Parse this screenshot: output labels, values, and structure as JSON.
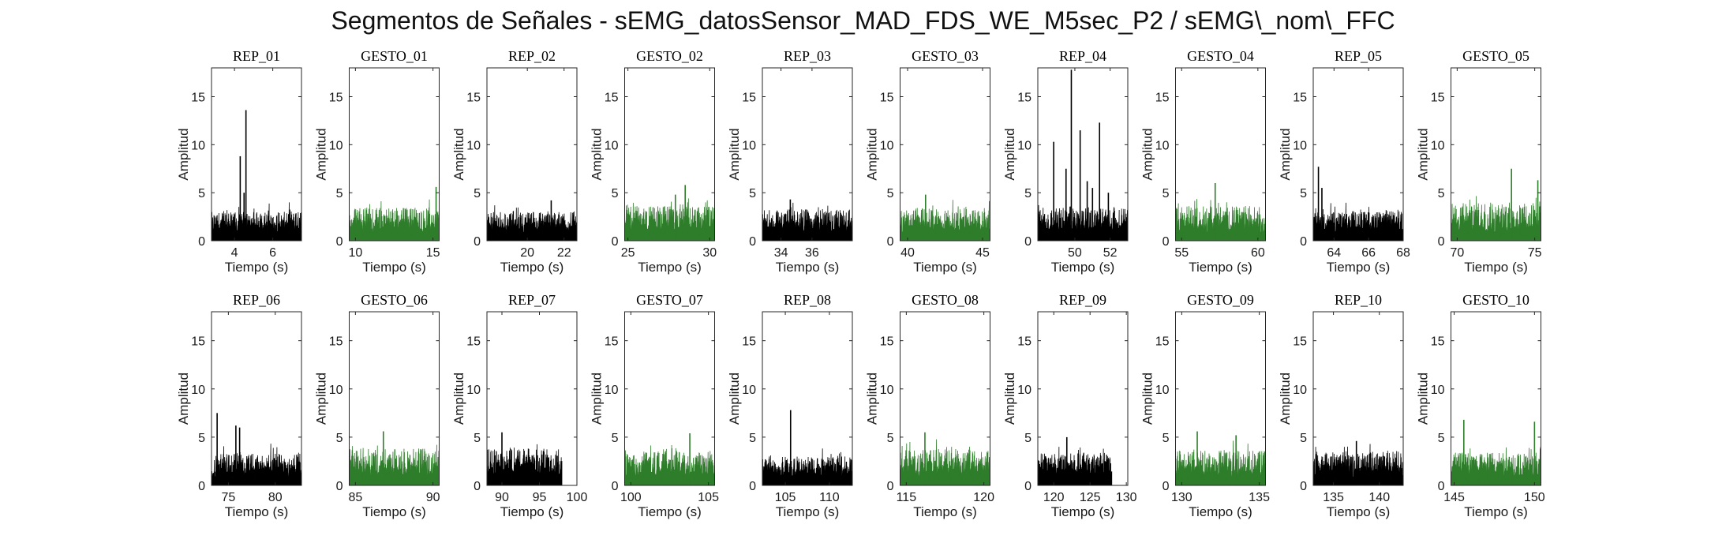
{
  "figure": {
    "title": "Segmentos de Señales - sEMG_datosSensor_MAD_FDS_WE_M5sec_P2 / sEMG\\_nom\\_FFC"
  },
  "colors": {
    "rep": "#000000",
    "gesto": "#2e7d2a"
  },
  "chart_data": [
    {
      "type": "area",
      "title": "REP_01",
      "kind": "rep",
      "xlim": [
        2.8,
        7.5
      ],
      "xticks": [
        4,
        6
      ],
      "ylim": [
        0,
        18
      ],
      "yticks": [
        0,
        5,
        10,
        15
      ],
      "xlabel": "Tiempo (s)",
      "ylabel": "Amplitud",
      "x_start": 2.8,
      "x_end": 7.5,
      "base": 3.0,
      "spikes": [
        [
          4.3,
          8.8
        ],
        [
          4.6,
          13.6
        ],
        [
          4.5,
          5.0
        ]
      ]
    },
    {
      "type": "area",
      "title": "GESTO_01",
      "kind": "gesto",
      "xlim": [
        9.6,
        15.4
      ],
      "xticks": [
        10,
        15
      ],
      "ylim": [
        0,
        18
      ],
      "yticks": [
        0,
        5,
        10,
        15
      ],
      "xlabel": "Tiempo (s)",
      "ylabel": "Amplitud",
      "x_start": 9.6,
      "x_end": 15.4,
      "base": 3.5,
      "spikes": [
        [
          15.2,
          5.6
        ]
      ]
    },
    {
      "type": "area",
      "title": "REP_02",
      "kind": "rep",
      "xlim": [
        17.8,
        22.7
      ],
      "xticks": [
        20,
        22
      ],
      "ylim": [
        0,
        18
      ],
      "yticks": [
        0,
        5,
        10,
        15
      ],
      "xlabel": "Tiempo (s)",
      "ylabel": "Amplitud",
      "x_start": 17.8,
      "x_end": 22.7,
      "base": 3.0,
      "spikes": [
        [
          21.3,
          4.2
        ]
      ]
    },
    {
      "type": "area",
      "title": "GESTO_02",
      "kind": "gesto",
      "xlim": [
        24.8,
        30.3
      ],
      "xticks": [
        25,
        30
      ],
      "ylim": [
        0,
        18
      ],
      "yticks": [
        0,
        5,
        10,
        15
      ],
      "xlabel": "Tiempo (s)",
      "ylabel": "Amplitud",
      "x_start": 24.8,
      "x_end": 30.3,
      "base": 3.6,
      "spikes": [
        [
          28.5,
          5.8
        ],
        [
          27.9,
          4.8
        ]
      ]
    },
    {
      "type": "area",
      "title": "REP_03",
      "kind": "rep",
      "xlim": [
        32.8,
        38.6
      ],
      "xticks": [
        34,
        36
      ],
      "ylim": [
        0,
        18
      ],
      "yticks": [
        0,
        5,
        10,
        15
      ],
      "xlabel": "Tiempo (s)",
      "ylabel": "Amplitud",
      "x_start": 32.8,
      "x_end": 38.6,
      "base": 3.3,
      "spikes": [
        [
          34.6,
          4.3
        ]
      ]
    },
    {
      "type": "area",
      "title": "GESTO_03",
      "kind": "gesto",
      "xlim": [
        39.5,
        45.5
      ],
      "xticks": [
        40,
        45
      ],
      "ylim": [
        0,
        18
      ],
      "yticks": [
        0,
        5,
        10,
        15
      ],
      "xlabel": "Tiempo (s)",
      "ylabel": "Amplitud",
      "x_start": 39.5,
      "x_end": 45.5,
      "base": 3.4,
      "spikes": [
        [
          41.2,
          4.8
        ]
      ]
    },
    {
      "type": "area",
      "title": "REP_04",
      "kind": "rep",
      "xlim": [
        47.9,
        53.0
      ],
      "xticks": [
        50,
        52
      ],
      "ylim": [
        0,
        18
      ],
      "yticks": [
        0,
        5,
        10,
        15
      ],
      "xlabel": "Tiempo (s)",
      "ylabel": "Amplitud",
      "x_start": 47.9,
      "x_end": 53.0,
      "base": 3.5,
      "spikes": [
        [
          48.8,
          10.3
        ],
        [
          49.5,
          7.5
        ],
        [
          49.8,
          17.8
        ],
        [
          50.3,
          11.5
        ],
        [
          50.7,
          6.2
        ],
        [
          51.0,
          5.5
        ],
        [
          51.4,
          12.3
        ],
        [
          51.9,
          5.0
        ]
      ]
    },
    {
      "type": "area",
      "title": "GESTO_04",
      "kind": "gesto",
      "xlim": [
        54.6,
        60.5
      ],
      "xticks": [
        55,
        60
      ],
      "ylim": [
        0,
        18
      ],
      "yticks": [
        0,
        5,
        10,
        15
      ],
      "xlabel": "Tiempo (s)",
      "ylabel": "Amplitud",
      "x_start": 54.6,
      "x_end": 60.5,
      "base": 3.6,
      "spikes": [
        [
          57.2,
          6.0
        ]
      ]
    },
    {
      "type": "area",
      "title": "REP_05",
      "kind": "rep",
      "xlim": [
        62.8,
        68.0
      ],
      "xticks": [
        64,
        66,
        68
      ],
      "ylim": [
        0,
        18
      ],
      "yticks": [
        0,
        5,
        10,
        15
      ],
      "xlabel": "Tiempo (s)",
      "ylabel": "Amplitud",
      "x_start": 62.8,
      "x_end": 68.0,
      "base": 3.1,
      "spikes": [
        [
          63.1,
          7.7
        ],
        [
          63.3,
          5.5
        ]
      ]
    },
    {
      "type": "area",
      "title": "GESTO_05",
      "kind": "gesto",
      "xlim": [
        69.6,
        75.4
      ],
      "xticks": [
        70,
        75
      ],
      "ylim": [
        0,
        18
      ],
      "yticks": [
        0,
        5,
        10,
        15
      ],
      "xlabel": "Tiempo (s)",
      "ylabel": "Amplitud",
      "x_start": 69.6,
      "x_end": 75.4,
      "base": 4.0,
      "spikes": [
        [
          73.5,
          7.5
        ],
        [
          75.2,
          6.3
        ]
      ]
    },
    {
      "type": "area",
      "title": "REP_06",
      "kind": "rep",
      "xlim": [
        73.2,
        82.8
      ],
      "xticks": [
        75,
        80
      ],
      "ylim": [
        0,
        18
      ],
      "yticks": [
        0,
        5,
        10,
        15
      ],
      "xlabel": "Tiempo (s)",
      "ylabel": "Amplitud",
      "x_start": 73.2,
      "x_end": 82.8,
      "base": 3.3,
      "spikes": [
        [
          73.8,
          7.5
        ],
        [
          75.8,
          6.2
        ],
        [
          76.2,
          6.0
        ]
      ]
    },
    {
      "type": "area",
      "title": "GESTO_06",
      "kind": "gesto",
      "xlim": [
        84.6,
        90.4
      ],
      "xticks": [
        85,
        90
      ],
      "ylim": [
        0,
        18
      ],
      "yticks": [
        0,
        5,
        10,
        15
      ],
      "xlabel": "Tiempo (s)",
      "ylabel": "Amplitud",
      "x_start": 84.6,
      "x_end": 90.4,
      "base": 3.8,
      "spikes": [
        [
          86.8,
          5.6
        ]
      ]
    },
    {
      "type": "area",
      "title": "REP_07",
      "kind": "rep",
      "xlim": [
        88.0,
        100.0
      ],
      "xticks": [
        90,
        95,
        100
      ],
      "ylim": [
        0,
        18
      ],
      "yticks": [
        0,
        5,
        10,
        15
      ],
      "xlabel": "Tiempo (s)",
      "ylabel": "Amplitud",
      "x_start": 88.0,
      "x_end": 98.0,
      "base": 3.8,
      "spikes": [
        [
          90.0,
          5.5
        ]
      ]
    },
    {
      "type": "area",
      "title": "GESTO_07",
      "kind": "gesto",
      "xlim": [
        99.6,
        105.4
      ],
      "xticks": [
        100,
        105
      ],
      "ylim": [
        0,
        18
      ],
      "yticks": [
        0,
        5,
        10,
        15
      ],
      "xlabel": "Tiempo (s)",
      "ylabel": "Amplitud",
      "x_start": 99.6,
      "x_end": 105.4,
      "base": 3.6,
      "spikes": [
        [
          103.8,
          5.4
        ]
      ]
    },
    {
      "type": "area",
      "title": "REP_08",
      "kind": "rep",
      "xlim": [
        102.4,
        112.6
      ],
      "xticks": [
        105,
        110
      ],
      "ylim": [
        0,
        18
      ],
      "yticks": [
        0,
        5,
        10,
        15
      ],
      "xlabel": "Tiempo (s)",
      "ylabel": "Amplitud",
      "x_start": 102.4,
      "x_end": 112.6,
      "base": 3.0,
      "spikes": [
        [
          105.6,
          7.8
        ]
      ]
    },
    {
      "type": "area",
      "title": "GESTO_08",
      "kind": "gesto",
      "xlim": [
        114.6,
        120.4
      ],
      "xticks": [
        115,
        120
      ],
      "ylim": [
        0,
        18
      ],
      "yticks": [
        0,
        5,
        10,
        15
      ],
      "xlabel": "Tiempo (s)",
      "ylabel": "Amplitud",
      "x_start": 114.6,
      "x_end": 120.4,
      "base": 3.8,
      "spikes": [
        [
          116.2,
          5.5
        ]
      ]
    },
    {
      "type": "area",
      "title": "REP_09",
      "kind": "rep",
      "xlim": [
        117.8,
        130.2
      ],
      "xticks": [
        120,
        125,
        130
      ],
      "ylim": [
        0,
        18
      ],
      "yticks": [
        0,
        5,
        10,
        15
      ],
      "xlabel": "Tiempo (s)",
      "ylabel": "Amplitud",
      "x_start": 117.8,
      "x_end": 128.0,
      "base": 3.4,
      "spikes": [
        [
          121.8,
          5.0
        ]
      ]
    },
    {
      "type": "area",
      "title": "GESTO_09",
      "kind": "gesto",
      "xlim": [
        129.6,
        135.4
      ],
      "xticks": [
        130,
        135
      ],
      "ylim": [
        0,
        18
      ],
      "yticks": [
        0,
        5,
        10,
        15
      ],
      "xlabel": "Tiempo (s)",
      "ylabel": "Amplitud",
      "x_start": 129.6,
      "x_end": 135.4,
      "base": 3.6,
      "spikes": [
        [
          131.0,
          5.6
        ],
        [
          133.5,
          5.2
        ]
      ]
    },
    {
      "type": "area",
      "title": "REP_10",
      "kind": "rep",
      "xlim": [
        132.8,
        142.6
      ],
      "xticks": [
        135,
        140
      ],
      "ylim": [
        0,
        18
      ],
      "yticks": [
        0,
        5,
        10,
        15
      ],
      "xlabel": "Tiempo (s)",
      "ylabel": "Amplitud",
      "x_start": 132.8,
      "x_end": 142.6,
      "base": 3.5,
      "spikes": [
        [
          137.5,
          4.6
        ]
      ]
    },
    {
      "type": "area",
      "title": "GESTO_10",
      "kind": "gesto",
      "xlim": [
        144.8,
        150.4
      ],
      "xticks": [
        145,
        150
      ],
      "ylim": [
        0,
        18
      ],
      "yticks": [
        0,
        5,
        10,
        15
      ],
      "xlabel": "Tiempo (s)",
      "ylabel": "Amplitud",
      "x_start": 144.8,
      "x_end": 150.4,
      "base": 3.4,
      "spikes": [
        [
          145.6,
          6.8
        ],
        [
          150.0,
          6.6
        ]
      ]
    }
  ]
}
